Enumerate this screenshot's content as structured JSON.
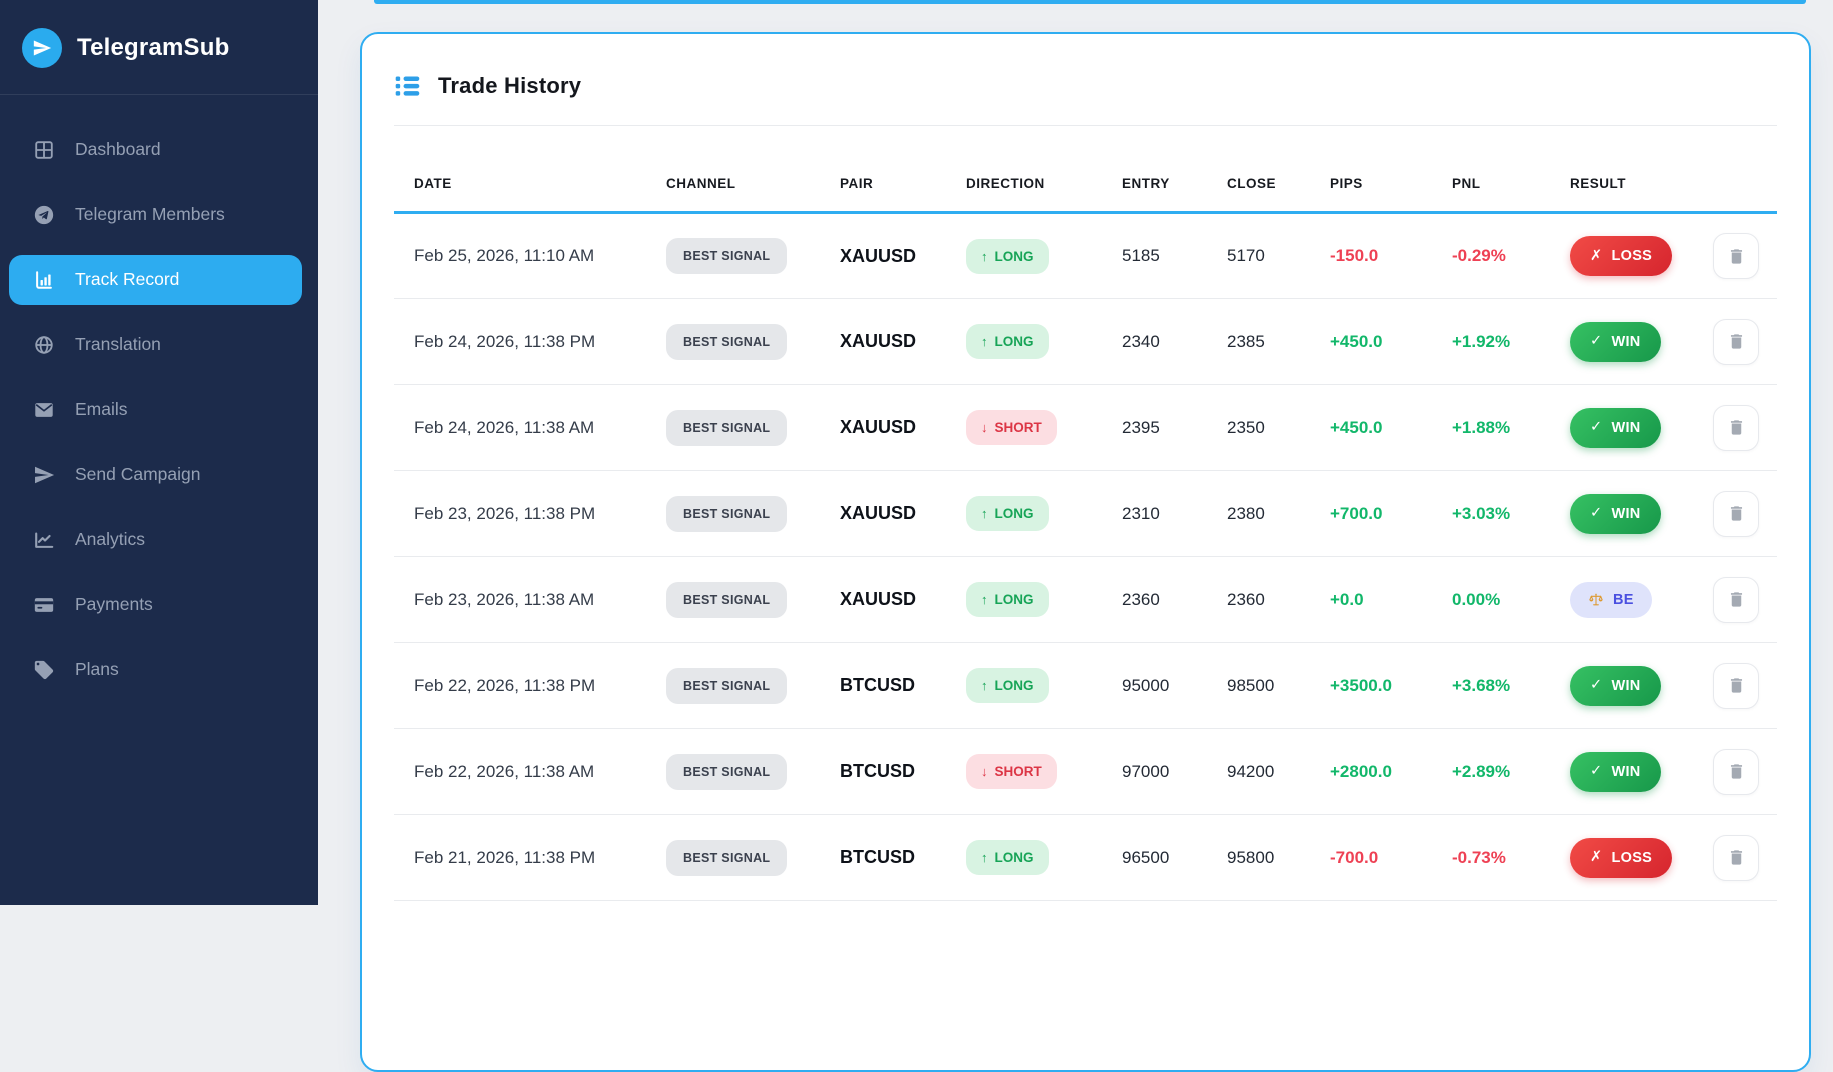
{
  "colors": {
    "accent_blue": "#2fadf1",
    "sidebar_bg": "#1c2b4b",
    "win_green": "#1b9d4a",
    "loss_red": "#d6252e",
    "positive_text": "#12b76a",
    "negative_text": "#ee4154",
    "be_lavender": "#dfe3fb"
  },
  "sidebar": {
    "brand": "TelegramSub",
    "brand_icon": "telegram-logo-icon",
    "items": [
      {
        "label": "Dashboard",
        "icon": "dashboard-grid-icon",
        "active": false
      },
      {
        "label": "Telegram Members",
        "icon": "telegram-icon",
        "active": false
      },
      {
        "label": "Track Record",
        "icon": "bar-chart-icon",
        "active": true
      },
      {
        "label": "Translation",
        "icon": "globe-icon",
        "active": false
      },
      {
        "label": "Emails",
        "icon": "envelope-icon",
        "active": false
      },
      {
        "label": "Send Campaign",
        "icon": "paper-plane-icon",
        "active": false
      },
      {
        "label": "Analytics",
        "icon": "line-chart-icon",
        "active": false
      },
      {
        "label": "Payments",
        "icon": "credit-card-icon",
        "active": false
      },
      {
        "label": "Plans",
        "icon": "tag-icon",
        "active": false
      }
    ]
  },
  "card": {
    "title": "Trade History",
    "title_icon": "list-icon",
    "columns": [
      "DATE",
      "CHANNEL",
      "PAIR",
      "DIRECTION",
      "ENTRY",
      "CLOSE",
      "PIPS",
      "PNL",
      "RESULT"
    ],
    "rows": [
      {
        "date": "Feb 25, 2026, 11:10 AM",
        "channel": "BEST SIGNAL",
        "pair": "XAUUSD",
        "direction": {
          "arrow": "↑",
          "label": "LONG"
        },
        "entry": "5185",
        "close": "5170",
        "pips": "-150.0",
        "pnl": "-0.29%",
        "result": {
          "icon": "✗",
          "label": "LOSS"
        }
      },
      {
        "date": "Feb 24, 2026, 11:38 PM",
        "channel": "BEST SIGNAL",
        "pair": "XAUUSD",
        "direction": {
          "arrow": "↑",
          "label": "LONG"
        },
        "entry": "2340",
        "close": "2385",
        "pips": "+450.0",
        "pnl": "+1.92%",
        "result": {
          "icon": "✓",
          "label": "WIN"
        }
      },
      {
        "date": "Feb 24, 2026, 11:38 AM",
        "channel": "BEST SIGNAL",
        "pair": "XAUUSD",
        "direction": {
          "arrow": "↓",
          "label": "SHORT"
        },
        "entry": "2395",
        "close": "2350",
        "pips": "+450.0",
        "pnl": "+1.88%",
        "result": {
          "icon": "✓",
          "label": "WIN"
        }
      },
      {
        "date": "Feb 23, 2026, 11:38 PM",
        "channel": "BEST SIGNAL",
        "pair": "XAUUSD",
        "direction": {
          "arrow": "↑",
          "label": "LONG"
        },
        "entry": "2310",
        "close": "2380",
        "pips": "+700.0",
        "pnl": "+3.03%",
        "result": {
          "icon": "✓",
          "label": "WIN"
        }
      },
      {
        "date": "Feb 23, 2026, 11:38 AM",
        "channel": "BEST SIGNAL",
        "pair": "XAUUSD",
        "direction": {
          "arrow": "↑",
          "label": "LONG"
        },
        "entry": "2360",
        "close": "2360",
        "pips": "+0.0",
        "pnl": "0.00%",
        "result": {
          "icon": "scales",
          "label": "BE"
        }
      },
      {
        "date": "Feb 22, 2026, 11:38 PM",
        "channel": "BEST SIGNAL",
        "pair": "BTCUSD",
        "direction": {
          "arrow": "↑",
          "label": "LONG"
        },
        "entry": "95000",
        "close": "98500",
        "pips": "+3500.0",
        "pnl": "+3.68%",
        "result": {
          "icon": "✓",
          "label": "WIN"
        }
      },
      {
        "date": "Feb 22, 2026, 11:38 AM",
        "channel": "BEST SIGNAL",
        "pair": "BTCUSD",
        "direction": {
          "arrow": "↓",
          "label": "SHORT"
        },
        "entry": "97000",
        "close": "94200",
        "pips": "+2800.0",
        "pnl": "+2.89%",
        "result": {
          "icon": "✓",
          "label": "WIN"
        }
      },
      {
        "date": "Feb 21, 2026, 11:38 PM",
        "channel": "BEST SIGNAL",
        "pair": "BTCUSD",
        "direction": {
          "arrow": "↑",
          "label": "LONG"
        },
        "entry": "96500",
        "close": "95800",
        "pips": "-700.0",
        "pnl": "-0.73%",
        "result": {
          "icon": "✗",
          "label": "LOSS"
        }
      }
    ]
  }
}
